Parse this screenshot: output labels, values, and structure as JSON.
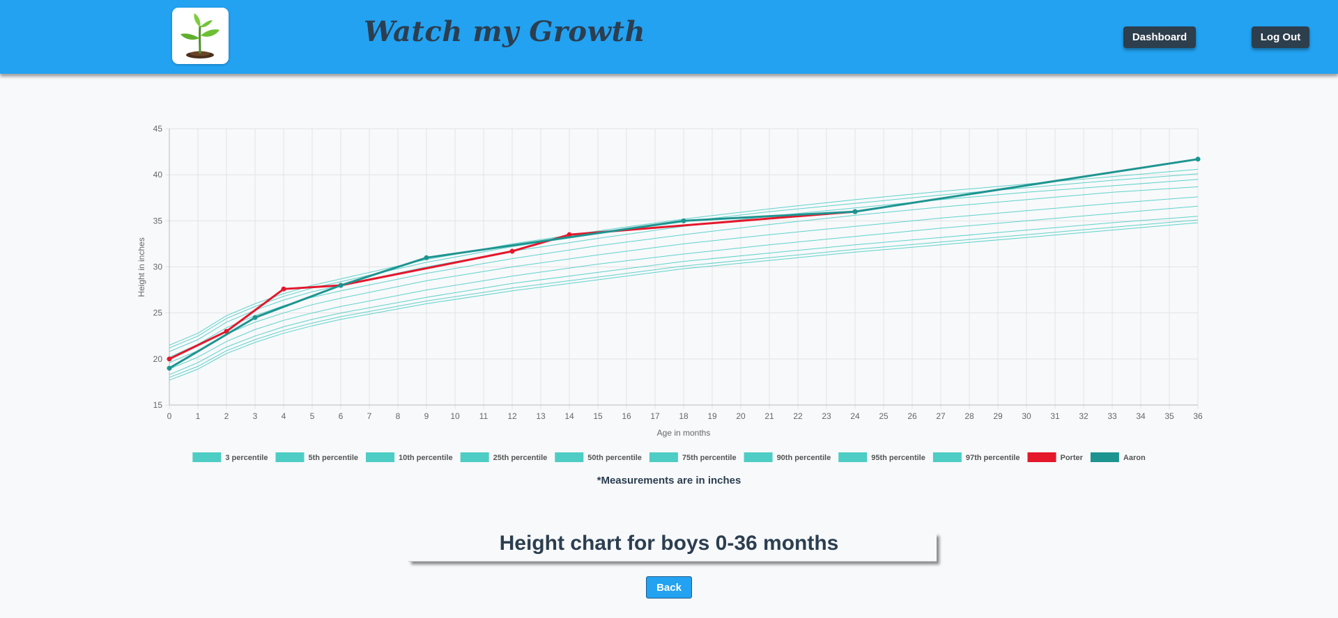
{
  "header": {
    "brand": "Watch my Growth",
    "dashboard_label": "Dashboard",
    "logout_label": "Log Out",
    "colors": {
      "bar": "#22a2f1",
      "button": "#2d3e4c"
    },
    "logo_icon": "seedling-icon"
  },
  "note": "*Measurements are in inches",
  "title": "Height chart for boys 0-36 months",
  "back_label": "Back",
  "chart_data": {
    "type": "line",
    "xlabel": "Age in months",
    "ylabel": "Height in inches",
    "xlim": [
      0,
      36
    ],
    "ylim": [
      15,
      45
    ],
    "xticks": [
      0,
      1,
      2,
      3,
      4,
      5,
      6,
      7,
      8,
      9,
      10,
      11,
      12,
      13,
      14,
      15,
      16,
      17,
      18,
      19,
      20,
      21,
      22,
      23,
      24,
      25,
      26,
      27,
      28,
      29,
      30,
      31,
      32,
      33,
      34,
      35,
      36
    ],
    "yticks": [
      15,
      20,
      25,
      30,
      35,
      40,
      45
    ],
    "grid": true,
    "legend_position": "bottom",
    "percentile_color": "#4ecdc4",
    "series": [
      {
        "name": "3 percentile",
        "color": "#4ecdc4",
        "points": [
          [
            0,
            17.7
          ],
          [
            1,
            18.9
          ],
          [
            2,
            20.6
          ],
          [
            3,
            21.8
          ],
          [
            4,
            22.8
          ],
          [
            5,
            23.6
          ],
          [
            6,
            24.3
          ],
          [
            9,
            26.0
          ],
          [
            12,
            27.4
          ],
          [
            15,
            28.6
          ],
          [
            18,
            29.8
          ],
          [
            21,
            30.7
          ],
          [
            24,
            31.6
          ],
          [
            27,
            32.4
          ],
          [
            30,
            33.2
          ],
          [
            33,
            34.0
          ],
          [
            36,
            34.8
          ]
        ]
      },
      {
        "name": "5th percentile",
        "color": "#4ecdc4",
        "points": [
          [
            0,
            18.0
          ],
          [
            1,
            19.2
          ],
          [
            2,
            20.9
          ],
          [
            3,
            22.1
          ],
          [
            4,
            23.1
          ],
          [
            5,
            23.9
          ],
          [
            6,
            24.6
          ],
          [
            9,
            26.3
          ],
          [
            12,
            27.7
          ],
          [
            15,
            28.9
          ],
          [
            18,
            30.1
          ],
          [
            21,
            31.0
          ],
          [
            24,
            31.9
          ],
          [
            27,
            32.7
          ],
          [
            30,
            33.5
          ],
          [
            33,
            34.3
          ],
          [
            36,
            35.1
          ]
        ]
      },
      {
        "name": "10th percentile",
        "color": "#4ecdc4",
        "points": [
          [
            0,
            18.3
          ],
          [
            1,
            19.6
          ],
          [
            2,
            21.3
          ],
          [
            3,
            22.5
          ],
          [
            4,
            23.5
          ],
          [
            5,
            24.3
          ],
          [
            6,
            25.0
          ],
          [
            9,
            26.7
          ],
          [
            12,
            28.2
          ],
          [
            15,
            29.4
          ],
          [
            18,
            30.6
          ],
          [
            21,
            31.5
          ],
          [
            24,
            32.4
          ],
          [
            27,
            33.2
          ],
          [
            30,
            34.0
          ],
          [
            33,
            34.8
          ],
          [
            36,
            35.5
          ]
        ]
      },
      {
        "name": "25th percentile",
        "color": "#4ecdc4",
        "points": [
          [
            0,
            18.9
          ],
          [
            1,
            20.2
          ],
          [
            2,
            21.9
          ],
          [
            3,
            23.2
          ],
          [
            4,
            24.2
          ],
          [
            5,
            25.0
          ],
          [
            6,
            25.7
          ],
          [
            9,
            27.5
          ],
          [
            12,
            29.0
          ],
          [
            15,
            30.3
          ],
          [
            18,
            31.4
          ],
          [
            21,
            32.4
          ],
          [
            24,
            33.3
          ],
          [
            27,
            34.2
          ],
          [
            30,
            35.0
          ],
          [
            33,
            35.8
          ],
          [
            36,
            36.6
          ]
        ]
      },
      {
        "name": "50th percentile",
        "color": "#4ecdc4",
        "points": [
          [
            0,
            19.6
          ],
          [
            1,
            20.9
          ],
          [
            2,
            22.7
          ],
          [
            3,
            24.0
          ],
          [
            4,
            25.0
          ],
          [
            5,
            25.9
          ],
          [
            6,
            26.6
          ],
          [
            9,
            28.5
          ],
          [
            12,
            30.0
          ],
          [
            15,
            31.3
          ],
          [
            18,
            32.5
          ],
          [
            21,
            33.5
          ],
          [
            24,
            34.4
          ],
          [
            27,
            35.3
          ],
          [
            30,
            36.1
          ],
          [
            33,
            36.9
          ],
          [
            36,
            37.6
          ]
        ]
      },
      {
        "name": "75th percentile",
        "color": "#4ecdc4",
        "points": [
          [
            0,
            20.2
          ],
          [
            1,
            21.6
          ],
          [
            2,
            23.4
          ],
          [
            3,
            24.7
          ],
          [
            4,
            25.8
          ],
          [
            5,
            26.7
          ],
          [
            6,
            27.4
          ],
          [
            9,
            29.3
          ],
          [
            12,
            30.9
          ],
          [
            15,
            32.3
          ],
          [
            18,
            33.5
          ],
          [
            21,
            34.6
          ],
          [
            24,
            35.6
          ],
          [
            27,
            36.5
          ],
          [
            30,
            37.3
          ],
          [
            33,
            38.1
          ],
          [
            36,
            38.7
          ]
        ]
      },
      {
        "name": "90th percentile",
        "color": "#4ecdc4",
        "points": [
          [
            0,
            20.8
          ],
          [
            1,
            22.1
          ],
          [
            2,
            24.0
          ],
          [
            3,
            25.3
          ],
          [
            4,
            26.4
          ],
          [
            5,
            27.3
          ],
          [
            6,
            28.0
          ],
          [
            9,
            30.0
          ],
          [
            12,
            31.7
          ],
          [
            15,
            33.1
          ],
          [
            18,
            34.4
          ],
          [
            21,
            35.5
          ],
          [
            24,
            36.4
          ],
          [
            27,
            37.3
          ],
          [
            30,
            38.1
          ],
          [
            33,
            38.8
          ],
          [
            36,
            39.5
          ]
        ]
      },
      {
        "name": "95th percentile",
        "color": "#4ecdc4",
        "points": [
          [
            0,
            21.2
          ],
          [
            1,
            22.5
          ],
          [
            2,
            24.4
          ],
          [
            3,
            25.7
          ],
          [
            4,
            26.8
          ],
          [
            5,
            27.7
          ],
          [
            6,
            28.4
          ],
          [
            9,
            30.5
          ],
          [
            12,
            32.2
          ],
          [
            15,
            33.6
          ],
          [
            18,
            34.9
          ],
          [
            21,
            36.0
          ],
          [
            24,
            36.9
          ],
          [
            27,
            37.8
          ],
          [
            30,
            38.6
          ],
          [
            33,
            39.4
          ],
          [
            36,
            40.1
          ]
        ]
      },
      {
        "name": "97th percentile",
        "color": "#4ecdc4",
        "points": [
          [
            0,
            21.5
          ],
          [
            1,
            22.8
          ],
          [
            2,
            24.7
          ],
          [
            3,
            26.0
          ],
          [
            4,
            27.1
          ],
          [
            5,
            28.0
          ],
          [
            6,
            28.7
          ],
          [
            9,
            30.8
          ],
          [
            12,
            32.5
          ],
          [
            15,
            33.9
          ],
          [
            18,
            35.2
          ],
          [
            21,
            36.3
          ],
          [
            24,
            37.3
          ],
          [
            27,
            38.2
          ],
          [
            30,
            39.0
          ],
          [
            33,
            39.8
          ],
          [
            36,
            40.6
          ]
        ]
      },
      {
        "name": "Porter",
        "color": "#e4172b",
        "points": [
          [
            0,
            20.0
          ],
          [
            2,
            23.0
          ],
          [
            4,
            27.6
          ],
          [
            6,
            28.0
          ],
          [
            12,
            31.7
          ],
          [
            14,
            33.5
          ],
          [
            24,
            36.0
          ]
        ]
      },
      {
        "name": "Aaron",
        "color": "#1e9490",
        "points": [
          [
            0,
            19.0
          ],
          [
            3,
            24.5
          ],
          [
            6,
            28.0
          ],
          [
            9,
            31.0
          ],
          [
            18,
            35.0
          ],
          [
            24,
            36.0
          ],
          [
            36,
            41.7
          ]
        ]
      }
    ]
  }
}
